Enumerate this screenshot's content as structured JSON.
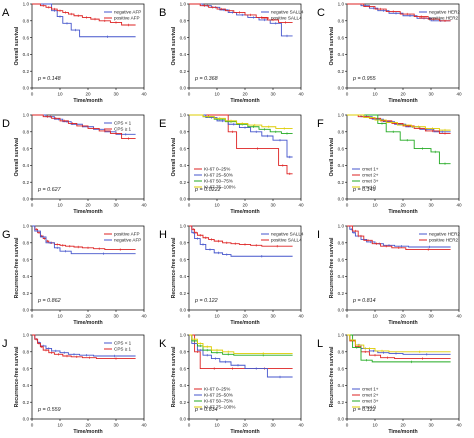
{
  "figure": {
    "time_label": "Time/month",
    "os_label": "Overall survival",
    "rfs_label": "Recurrence-free survival",
    "x_ticks": [
      "0",
      "10",
      "20",
      "30",
      "40"
    ],
    "y_ticks": [
      "0.0",
      "0.2",
      "0.4",
      "0.6",
      "0.8",
      "1.0"
    ]
  },
  "chart_data": [
    {
      "type": "line",
      "panel": "A",
      "ylabel": "Overall survival",
      "xlabel": "Time/month",
      "xlim": [
        0,
        40
      ],
      "ylim": [
        0,
        1
      ],
      "p_text": "p = 0.148",
      "legend_position": "top-right",
      "series": [
        {
          "name": "negative AFP",
          "color": "#4455cc",
          "x": [
            0,
            7,
            9,
            11,
            14,
            17,
            37
          ],
          "y": [
            1.0,
            0.92,
            0.85,
            0.77,
            0.69,
            0.61,
            0.61
          ]
        },
        {
          "name": "positive AFP",
          "color": "#dd2222",
          "x": [
            0,
            3,
            5,
            7,
            9,
            11,
            13,
            15,
            18,
            21,
            24,
            28,
            32,
            37
          ],
          "y": [
            1.0,
            0.98,
            0.96,
            0.94,
            0.92,
            0.9,
            0.88,
            0.86,
            0.84,
            0.82,
            0.8,
            0.78,
            0.75,
            0.75
          ]
        }
      ]
    },
    {
      "type": "line",
      "panel": "B",
      "ylabel": "Overall survival",
      "xlabel": "Time/month",
      "xlim": [
        0,
        40
      ],
      "ylim": [
        0,
        1
      ],
      "p_text": "p = 0.368",
      "legend_position": "top-right",
      "series": [
        {
          "name": "negative SALL4",
          "color": "#4455cc",
          "x": [
            0,
            5,
            8,
            11,
            14,
            17,
            21,
            25,
            29,
            33,
            37
          ],
          "y": [
            1.0,
            0.98,
            0.96,
            0.93,
            0.9,
            0.87,
            0.84,
            0.81,
            0.77,
            0.62,
            0.62
          ]
        },
        {
          "name": "positive SALL4",
          "color": "#dd2222",
          "x": [
            0,
            4,
            7,
            10,
            13,
            16,
            20,
            24,
            28,
            32,
            37
          ],
          "y": [
            1.0,
            0.98,
            0.96,
            0.94,
            0.92,
            0.9,
            0.87,
            0.84,
            0.81,
            0.78,
            0.78
          ]
        }
      ]
    },
    {
      "type": "line",
      "panel": "C",
      "ylabel": "Overall survival",
      "xlabel": "Time/month",
      "xlim": [
        0,
        40
      ],
      "ylim": [
        0,
        1
      ],
      "p_text": "p = 0.955",
      "legend_position": "top-right",
      "series": [
        {
          "name": "negative HER2",
          "color": "#4455cc",
          "x": [
            0,
            5,
            8,
            11,
            15,
            20,
            25,
            30,
            37
          ],
          "y": [
            1.0,
            0.98,
            0.95,
            0.92,
            0.89,
            0.86,
            0.83,
            0.8,
            0.8
          ]
        },
        {
          "name": "positive HER2",
          "color": "#dd2222",
          "x": [
            0,
            6,
            10,
            14,
            19,
            24,
            29,
            33,
            37
          ],
          "y": [
            1.0,
            0.97,
            0.94,
            0.91,
            0.88,
            0.85,
            0.82,
            0.8,
            0.8
          ]
        }
      ]
    },
    {
      "type": "line",
      "panel": "D",
      "ylabel": "Overall survival",
      "xlabel": "Time/month",
      "xlim": [
        0,
        40
      ],
      "ylim": [
        0,
        1
      ],
      "p_text": "p = 0.627",
      "legend_position": "top-right",
      "series": [
        {
          "name": "CPS < 1",
          "color": "#4455cc",
          "x": [
            0,
            5,
            8,
            11,
            14,
            18,
            22,
            26,
            30,
            37
          ],
          "y": [
            1.0,
            0.98,
            0.95,
            0.92,
            0.89,
            0.86,
            0.83,
            0.8,
            0.77,
            0.77
          ]
        },
        {
          "name": "CPS ≥ 1",
          "color": "#dd2222",
          "x": [
            0,
            4,
            7,
            10,
            13,
            16,
            20,
            24,
            28,
            32,
            37
          ],
          "y": [
            1.0,
            0.98,
            0.96,
            0.93,
            0.9,
            0.87,
            0.84,
            0.81,
            0.78,
            0.72,
            0.72
          ]
        }
      ]
    },
    {
      "type": "line",
      "panel": "E",
      "ylabel": "Overall survival",
      "xlabel": "Time/month",
      "xlim": [
        0,
        40
      ],
      "ylim": [
        0,
        1
      ],
      "p_text": "p = 0.0222",
      "legend_position": "bottom-left",
      "series": [
        {
          "name": "Ki-67 0–25%",
          "color": "#dd2222",
          "x": [
            0,
            14,
            17,
            32,
            35,
            37
          ],
          "y": [
            1.0,
            0.8,
            0.6,
            0.4,
            0.3,
            0.3
          ]
        },
        {
          "name": "Ki-67 25–50%",
          "color": "#4455cc",
          "x": [
            0,
            6,
            10,
            14,
            18,
            22,
            26,
            30,
            35,
            37
          ],
          "y": [
            1.0,
            0.97,
            0.93,
            0.89,
            0.85,
            0.8,
            0.75,
            0.7,
            0.5,
            0.5
          ]
        },
        {
          "name": "Ki-67 50–75%",
          "color": "#22aa22",
          "x": [
            0,
            5,
            9,
            13,
            17,
            21,
            25,
            29,
            33,
            37
          ],
          "y": [
            1.0,
            0.98,
            0.95,
            0.92,
            0.89,
            0.86,
            0.83,
            0.8,
            0.78,
            0.78
          ]
        },
        {
          "name": "Ki-67 75–100%",
          "color": "#ddcc00",
          "x": [
            0,
            5,
            9,
            13,
            17,
            21,
            26,
            31,
            37
          ],
          "y": [
            1.0,
            0.98,
            0.96,
            0.93,
            0.9,
            0.88,
            0.86,
            0.84,
            0.84
          ]
        }
      ]
    },
    {
      "type": "line",
      "panel": "F",
      "ylabel": "Overall survival",
      "xlabel": "Time/month",
      "xlim": [
        0,
        40
      ],
      "ylim": [
        0,
        1
      ],
      "p_text": "p = 0.149",
      "legend_position": "bottom-left",
      "series": [
        {
          "name": "cmet 1+",
          "color": "#4455cc",
          "x": [
            0,
            5,
            9,
            13,
            17,
            21,
            26,
            31,
            37
          ],
          "y": [
            1.0,
            0.98,
            0.95,
            0.92,
            0.89,
            0.86,
            0.83,
            0.8,
            0.8
          ]
        },
        {
          "name": "cmet 2+",
          "color": "#dd2222",
          "x": [
            0,
            4,
            8,
            12,
            16,
            20,
            24,
            28,
            33,
            37
          ],
          "y": [
            1.0,
            0.98,
            0.96,
            0.93,
            0.9,
            0.87,
            0.84,
            0.81,
            0.78,
            0.78
          ]
        },
        {
          "name": "cmet 3+",
          "color": "#22aa22",
          "x": [
            0,
            11,
            14,
            19,
            24,
            30,
            33,
            37
          ],
          "y": [
            1.0,
            0.9,
            0.8,
            0.7,
            0.6,
            0.56,
            0.42,
            0.42
          ]
        },
        {
          "name": "cmet 0",
          "color": "#ddcc00",
          "x": [
            0,
            6,
            10,
            14,
            18,
            23,
            28,
            33,
            37
          ],
          "y": [
            1.0,
            0.97,
            0.94,
            0.91,
            0.88,
            0.86,
            0.84,
            0.82,
            0.82
          ]
        }
      ]
    },
    {
      "type": "line",
      "panel": "G",
      "ylabel": "Recurrence-free survival",
      "xlabel": "Time/month",
      "xlim": [
        0,
        40
      ],
      "ylim": [
        0,
        1
      ],
      "p_text": "p = 0.862",
      "legend_position": "top-right",
      "series": [
        {
          "name": "positive AFP",
          "color": "#dd2222",
          "x": [
            0,
            1,
            2,
            3,
            4,
            5,
            6,
            8,
            10,
            12,
            15,
            18,
            22,
            26,
            37
          ],
          "y": [
            1.0,
            0.96,
            0.92,
            0.88,
            0.85,
            0.82,
            0.8,
            0.78,
            0.77,
            0.76,
            0.75,
            0.74,
            0.73,
            0.72,
            0.72
          ]
        },
        {
          "name": "negative AFP",
          "color": "#4455cc",
          "x": [
            0,
            1,
            3,
            5,
            8,
            10,
            14,
            37
          ],
          "y": [
            1.0,
            0.94,
            0.87,
            0.8,
            0.74,
            0.7,
            0.67,
            0.67
          ]
        }
      ]
    },
    {
      "type": "line",
      "panel": "H",
      "ylabel": "Recurrence-free survival",
      "xlabel": "Time/month",
      "xlim": [
        0,
        40
      ],
      "ylim": [
        0,
        1
      ],
      "p_text": "p = 0.122",
      "legend_position": "top-right",
      "series": [
        {
          "name": "negative SALL4",
          "color": "#4455cc",
          "x": [
            0,
            1,
            2,
            4,
            6,
            9,
            12,
            15,
            37
          ],
          "y": [
            1.0,
            0.92,
            0.85,
            0.78,
            0.72,
            0.68,
            0.66,
            0.64,
            0.64
          ]
        },
        {
          "name": "positive SALL4",
          "color": "#dd2222",
          "x": [
            0,
            1,
            2,
            3,
            5,
            7,
            9,
            12,
            15,
            18,
            22,
            26,
            37
          ],
          "y": [
            1.0,
            0.96,
            0.92,
            0.89,
            0.86,
            0.84,
            0.82,
            0.8,
            0.79,
            0.78,
            0.77,
            0.76,
            0.76
          ]
        }
      ]
    },
    {
      "type": "line",
      "panel": "I",
      "ylabel": "Recurrence-free survival",
      "xlabel": "Time/month",
      "xlim": [
        0,
        40
      ],
      "ylim": [
        0,
        1
      ],
      "p_text": "p = 0.814",
      "legend_position": "top-right",
      "series": [
        {
          "name": "negative HER2",
          "color": "#4455cc",
          "x": [
            0,
            1,
            2,
            3,
            5,
            7,
            10,
            13,
            17,
            22,
            37
          ],
          "y": [
            1.0,
            0.96,
            0.92,
            0.88,
            0.84,
            0.81,
            0.79,
            0.77,
            0.76,
            0.75,
            0.75
          ]
        },
        {
          "name": "positive HER2",
          "color": "#dd2222",
          "x": [
            0,
            2,
            4,
            6,
            9,
            12,
            16,
            21,
            37
          ],
          "y": [
            1.0,
            0.94,
            0.88,
            0.83,
            0.79,
            0.76,
            0.74,
            0.72,
            0.72
          ]
        }
      ]
    },
    {
      "type": "line",
      "panel": "J",
      "ylabel": "Recurrence-free survival",
      "xlabel": "Time/month",
      "xlim": [
        0,
        40
      ],
      "ylim": [
        0,
        1
      ],
      "p_text": "p = 0.559",
      "legend_position": "top-right",
      "series": [
        {
          "name": "CPS < 1",
          "color": "#4455cc",
          "x": [
            0,
            1,
            2,
            3,
            5,
            7,
            10,
            13,
            17,
            22,
            37
          ],
          "y": [
            1.0,
            0.95,
            0.91,
            0.87,
            0.84,
            0.81,
            0.79,
            0.77,
            0.76,
            0.75,
            0.75
          ]
        },
        {
          "name": "CPS ≥ 1",
          "color": "#dd2222",
          "x": [
            0,
            1,
            2,
            3,
            4,
            6,
            8,
            11,
            14,
            18,
            23,
            37
          ],
          "y": [
            1.0,
            0.95,
            0.9,
            0.86,
            0.82,
            0.79,
            0.77,
            0.75,
            0.74,
            0.73,
            0.72,
            0.72
          ]
        }
      ]
    },
    {
      "type": "line",
      "panel": "K",
      "ylabel": "Recurrence-free survival",
      "xlabel": "Time/month",
      "xlim": [
        0,
        40
      ],
      "ylim": [
        0,
        1
      ],
      "p_text": "p = 0.634",
      "legend_position": "bottom-left",
      "series": [
        {
          "name": "Ki-67 0–25%",
          "color": "#dd2222",
          "x": [
            0,
            2,
            4,
            14,
            17,
            37
          ],
          "y": [
            1.0,
            0.8,
            0.6,
            0.6,
            0.6,
            0.6
          ]
        },
        {
          "name": "Ki-67 25–50%",
          "color": "#4455cc",
          "x": [
            0,
            1,
            3,
            5,
            8,
            11,
            15,
            20,
            28,
            37
          ],
          "y": [
            1.0,
            0.9,
            0.82,
            0.76,
            0.72,
            0.68,
            0.64,
            0.6,
            0.5,
            0.5
          ]
        },
        {
          "name": "Ki-67 50–75%",
          "color": "#22aa22",
          "x": [
            0,
            1,
            3,
            5,
            8,
            12,
            16,
            37
          ],
          "y": [
            1.0,
            0.93,
            0.87,
            0.82,
            0.79,
            0.77,
            0.76,
            0.76
          ]
        },
        {
          "name": "Ki-67 75–100%",
          "color": "#ddcc00",
          "x": [
            0,
            1,
            3,
            5,
            8,
            12,
            16,
            37
          ],
          "y": [
            1.0,
            0.95,
            0.9,
            0.86,
            0.82,
            0.8,
            0.78,
            0.78
          ]
        }
      ]
    },
    {
      "type": "line",
      "panel": "L",
      "ylabel": "Recurrence-free survival",
      "xlabel": "Time/month",
      "xlim": [
        0,
        40
      ],
      "ylim": [
        0,
        1
      ],
      "p_text": "p = 0.122",
      "legend_position": "bottom-left",
      "series": [
        {
          "name": "cmet 1+",
          "color": "#4455cc",
          "x": [
            0,
            1,
            3,
            5,
            8,
            11,
            15,
            20,
            37
          ],
          "y": [
            1.0,
            0.94,
            0.88,
            0.84,
            0.81,
            0.79,
            0.78,
            0.77,
            0.77
          ]
        },
        {
          "name": "cmet 2+",
          "color": "#dd2222",
          "x": [
            0,
            1,
            3,
            5,
            8,
            12,
            17,
            37
          ],
          "y": [
            1.0,
            0.93,
            0.86,
            0.8,
            0.76,
            0.73,
            0.72,
            0.72
          ]
        },
        {
          "name": "cmet 3+",
          "color": "#22aa22",
          "x": [
            0,
            2,
            5,
            9,
            37
          ],
          "y": [
            1.0,
            0.85,
            0.7,
            0.68,
            0.68
          ]
        },
        {
          "name": "cmet 0",
          "color": "#ddcc00",
          "x": [
            0,
            1,
            3,
            6,
            10,
            15,
            37
          ],
          "y": [
            1.0,
            0.94,
            0.88,
            0.84,
            0.81,
            0.8,
            0.8
          ]
        }
      ]
    }
  ]
}
